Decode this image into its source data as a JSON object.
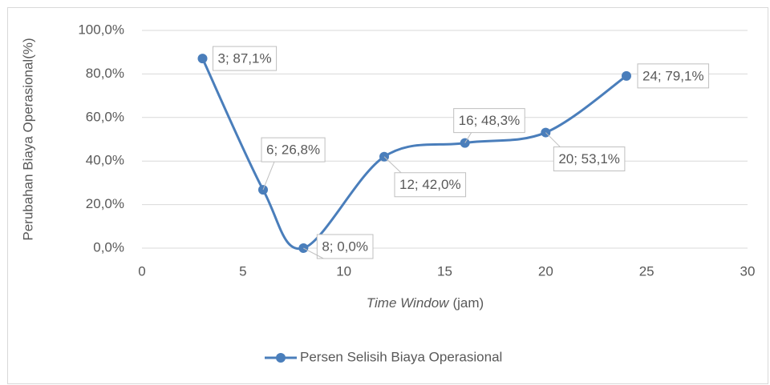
{
  "chart_data": {
    "type": "scatter",
    "x_label": [
      "Time Window",
      "(jam)"
    ],
    "y_label": "Perubahan Biaya Operasional(%)",
    "series": [
      {
        "name": "Persen Selisih Biaya Operasional",
        "color": "#4a7ebb",
        "x": [
          3,
          6,
          8,
          12,
          16,
          20,
          24
        ],
        "values": [
          87.1,
          26.8,
          0.0,
          42.0,
          48.3,
          53.1,
          79.1
        ],
        "value_labels": [
          "3; 87,1%",
          "6; 26,8%",
          "8; 0,0%",
          "12; 42,0%",
          "16; 48,3%",
          "20; 53,1%",
          "24; 79,1%"
        ]
      }
    ],
    "xlim": [
      0,
      30
    ],
    "xticks": [
      0,
      5,
      10,
      15,
      20,
      25,
      30
    ],
    "ylim": [
      0,
      100
    ],
    "yticks": [
      {
        "value": 0,
        "label": "0,0%"
      },
      {
        "value": 20,
        "label": "20,0%"
      },
      {
        "value": 40,
        "label": "40,0%"
      },
      {
        "value": 60,
        "label": "60,0%"
      },
      {
        "value": 80,
        "label": "80,0%"
      },
      {
        "value": 100,
        "label": "100,0%"
      }
    ],
    "grid": true,
    "smooth": true,
    "legend": "bottom"
  }
}
